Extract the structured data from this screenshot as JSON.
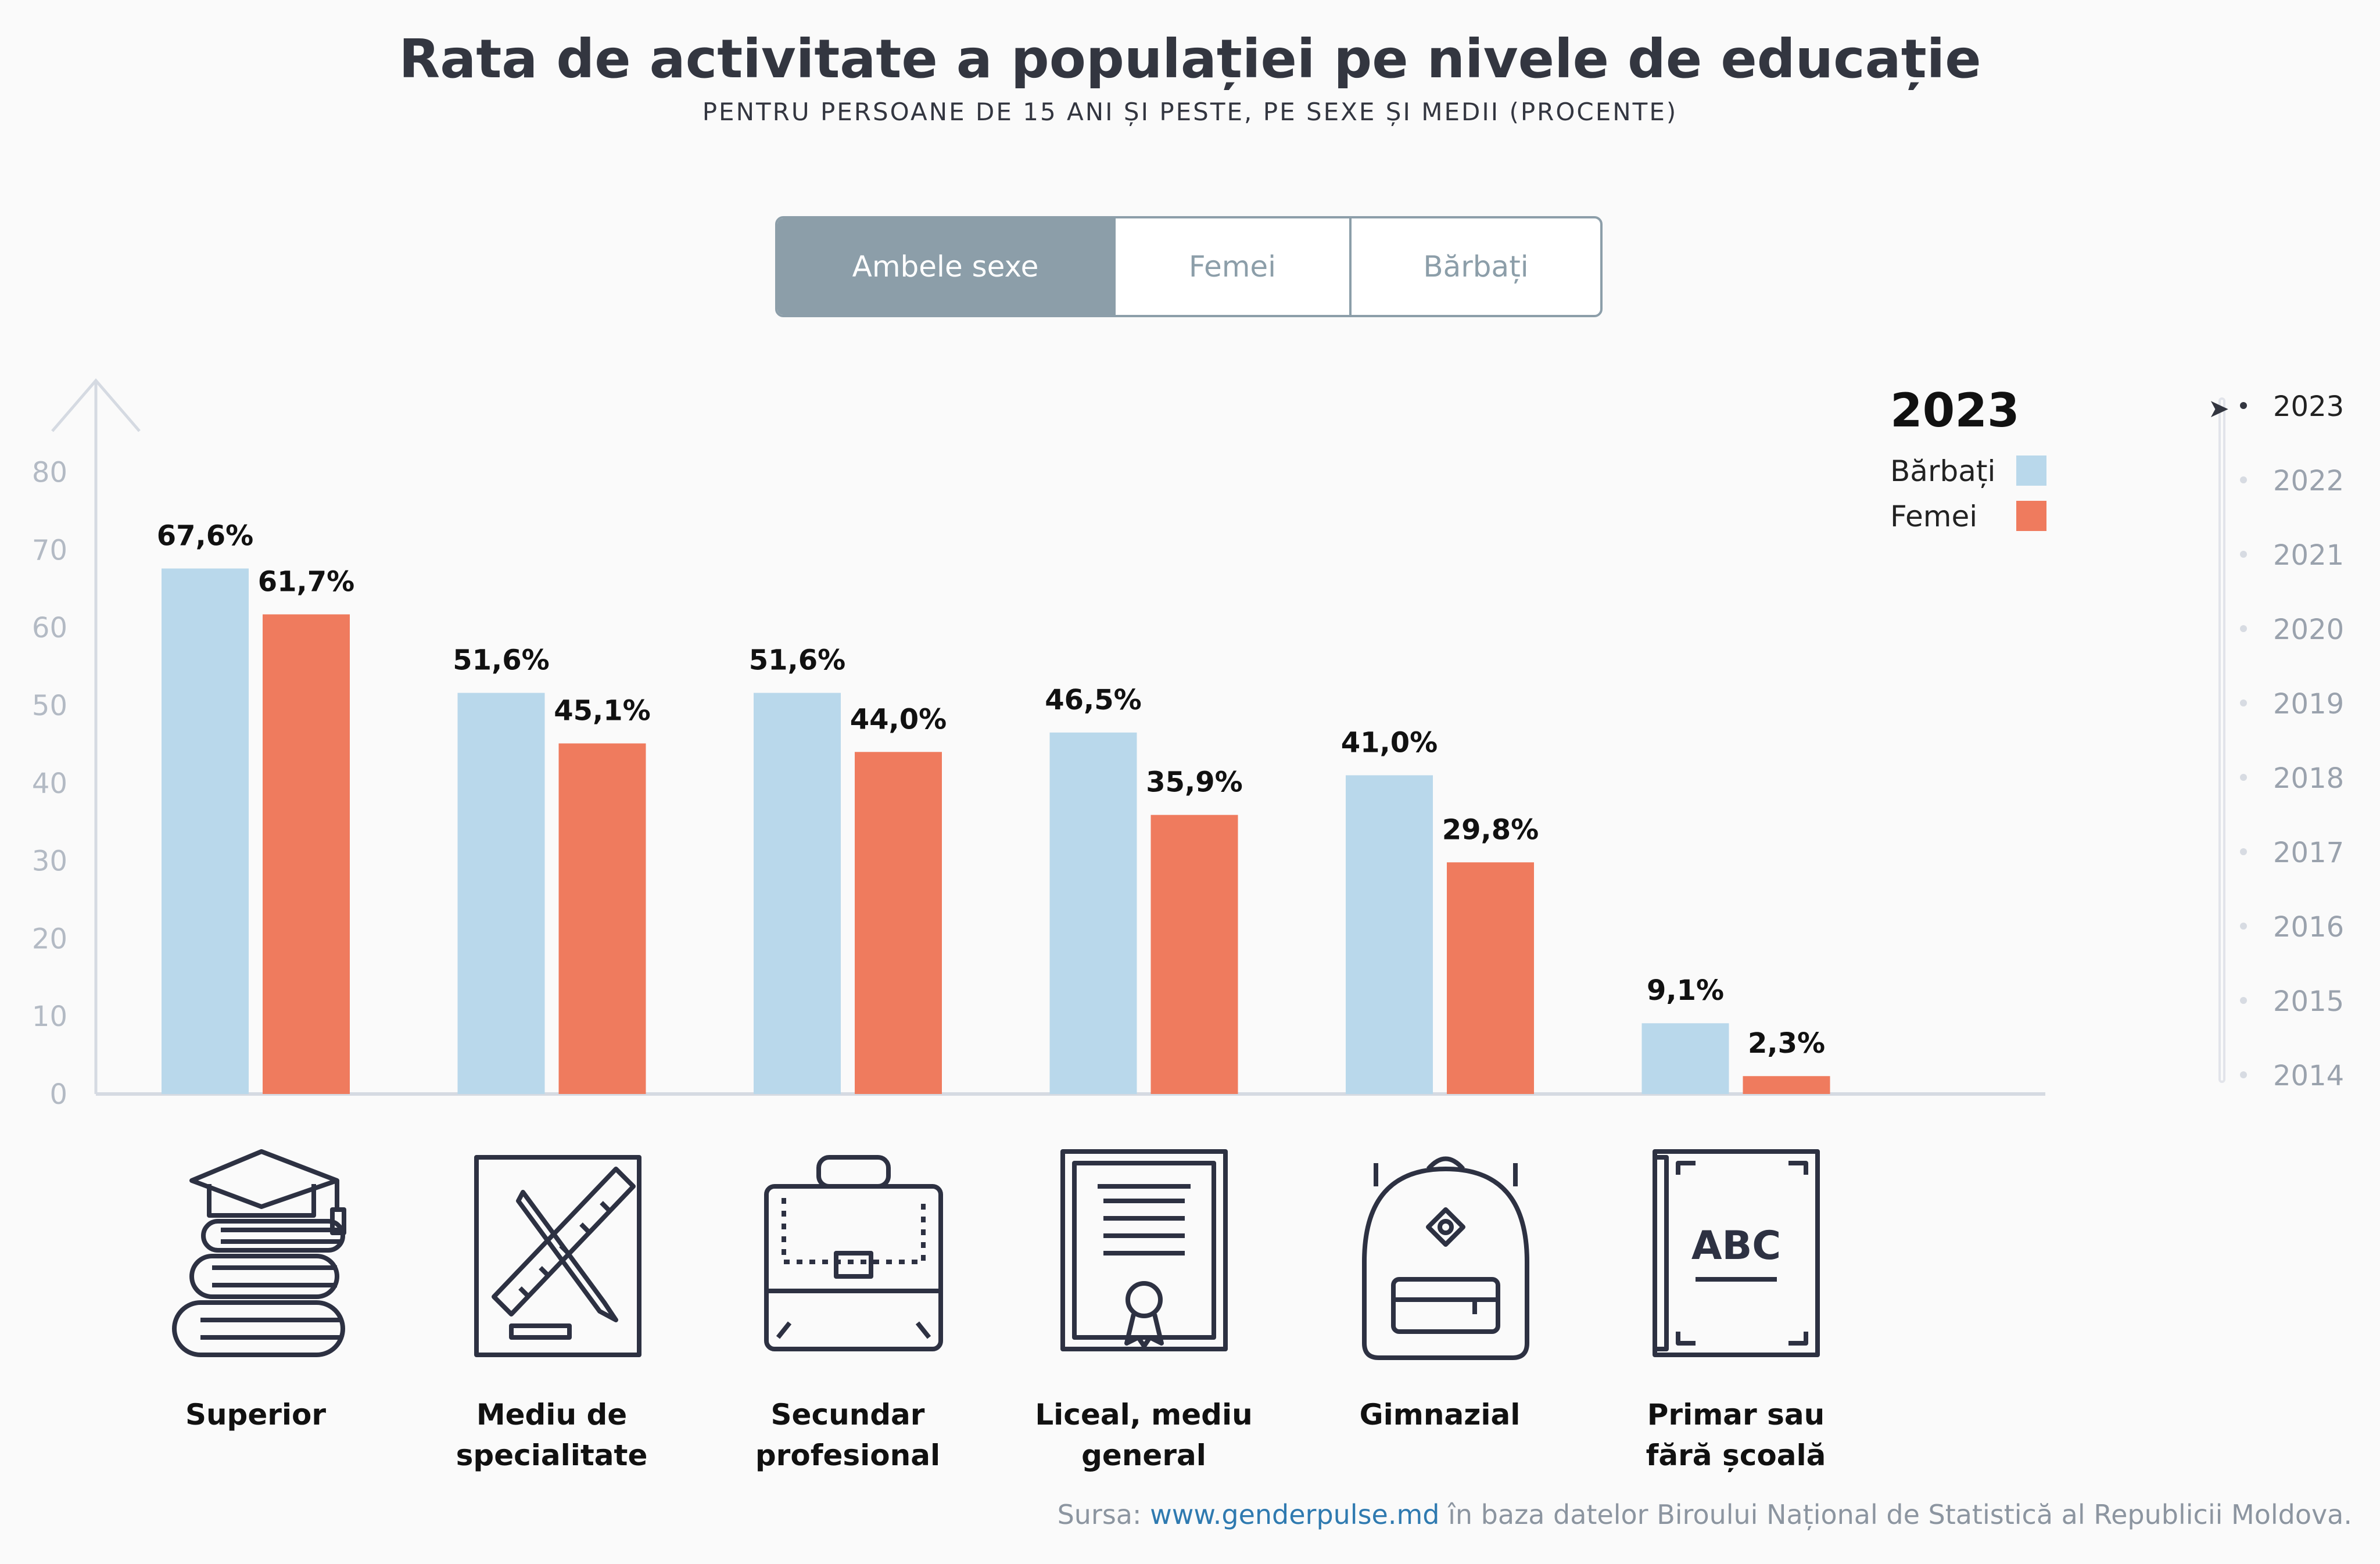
{
  "title": "Rata de activitate a populației pe nivele de educație",
  "subtitle": "PENTRU PERSOANE DE 15 ANI ȘI PESTE, PE SEXE ȘI MEDII (PROCENTE)",
  "tabs": [
    {
      "label": "Ambele sexe",
      "active": true
    },
    {
      "label": "Femei",
      "active": false
    },
    {
      "label": "Bărbați",
      "active": false
    }
  ],
  "legend": {
    "year": "2023",
    "items": [
      {
        "label": "Bărbați",
        "color": "#b9d8eb"
      },
      {
        "label": "Femei",
        "color": "#ef7b5e"
      }
    ]
  },
  "timeline": {
    "selected": "2023",
    "years": [
      "2023",
      "2022",
      "2021",
      "2020",
      "2019",
      "2018",
      "2017",
      "2016",
      "2015",
      "2014"
    ]
  },
  "chart_data": {
    "type": "bar",
    "categories": [
      "Superior",
      "Mediu de specialitate",
      "Secundar profesional",
      "Liceal, mediu general",
      "Gimnazial",
      "Primar sau fără școală"
    ],
    "category_lines": [
      [
        "Superior"
      ],
      [
        "Mediu de",
        "specialitate"
      ],
      [
        "Secundar",
        "profesional"
      ],
      [
        "Liceal, mediu",
        "general"
      ],
      [
        "Gimnazial"
      ],
      [
        "Primar sau",
        "fără școală"
      ]
    ],
    "series": [
      {
        "name": "Bărbați",
        "color": "#b9d8eb",
        "values": [
          67.6,
          51.6,
          51.6,
          46.5,
          41.0,
          9.1
        ],
        "labels": [
          "67,6%",
          "51,6%",
          "51,6%",
          "46,5%",
          "41,0%",
          "9,1%"
        ]
      },
      {
        "name": "Femei",
        "color": "#ef7b5e",
        "values": [
          61.7,
          45.1,
          44.0,
          35.9,
          29.8,
          2.3
        ],
        "labels": [
          "61,7%",
          "45,1%",
          "44,0%",
          "35,9%",
          "29,8%",
          "2,3%"
        ]
      }
    ],
    "ylim": [
      0,
      80
    ],
    "yticks": [
      0,
      10,
      20,
      30,
      40,
      50,
      60,
      70,
      80
    ],
    "xlabel": "",
    "ylabel": "",
    "grid": false
  },
  "icons": [
    "graduation-books-icon",
    "ruler-pencil-icon",
    "briefcase-icon",
    "diploma-icon",
    "backpack-icon",
    "abc-book-icon"
  ],
  "source": {
    "prefix": "Sursa: ",
    "link": "www.genderpulse.md",
    "suffix": " în baza datelor Biroului Național de Statistică al Republicii Moldova."
  }
}
